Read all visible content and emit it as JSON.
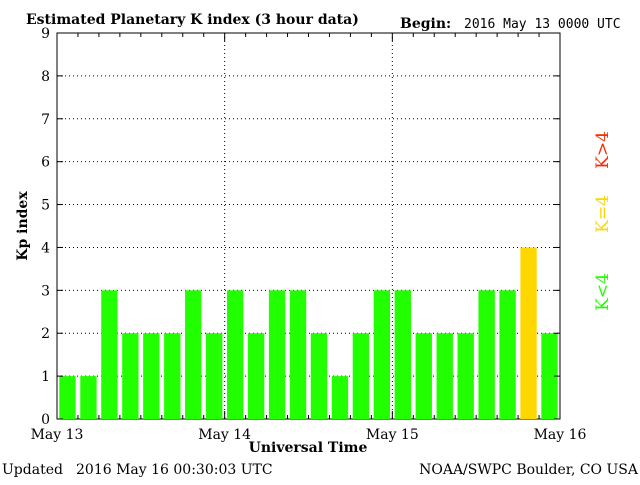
{
  "header": {
    "title": "Estimated Planetary K index (3 hour data)",
    "begin_label": "Begin:",
    "begin_value": "2016 May 13 0000 UTC"
  },
  "footer": {
    "updated_label": "Updated",
    "updated_value": "2016 May 16 00:30:03 UTC",
    "credit": "NOAA/SWPC Boulder, CO USA"
  },
  "legend": {
    "high": "K>4",
    "equal": "K=4",
    "low": "K<4"
  },
  "colors": {
    "low": "#22ff00",
    "equal": "#ffd700",
    "high": "#ff2a00",
    "axis": "#000000"
  },
  "chart_data": {
    "type": "bar",
    "title": "Estimated Planetary K index (3 hour data)",
    "xlabel": "Universal Time",
    "ylabel": "Kp index",
    "ylim": [
      0,
      9
    ],
    "y_ticks": [
      0,
      1,
      2,
      3,
      4,
      5,
      6,
      7,
      8,
      9
    ],
    "x_ticks": [
      "May 13",
      "May 14",
      "May 15",
      "May 16"
    ],
    "grid": "dotted",
    "legend_placement": "right",
    "intervals_per_day": 8,
    "values": [
      1,
      1,
      3,
      2,
      2,
      2,
      3,
      2,
      3,
      2,
      3,
      3,
      2,
      1,
      2,
      3,
      3,
      2,
      2,
      2,
      3,
      3,
      4,
      2
    ]
  }
}
